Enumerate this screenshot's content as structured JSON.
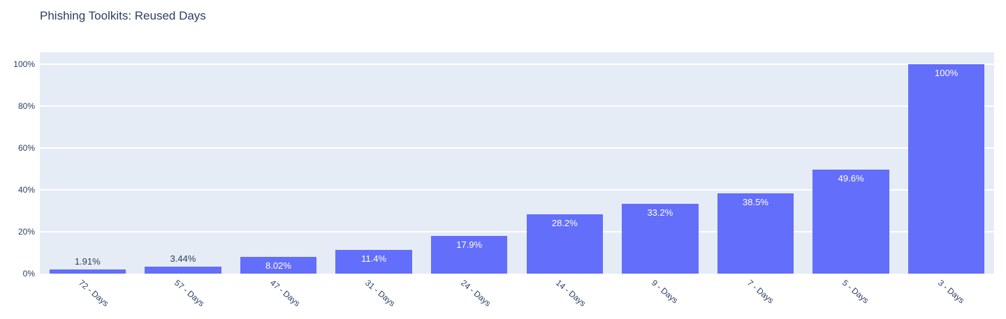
{
  "chart_data": {
    "type": "bar",
    "title": "Phishing Toolkits: Reused Days",
    "categories": [
      "72 - Days",
      "57 - Days",
      "47 - Days",
      "31 - Days",
      "24 - Days",
      "14 - Days",
      "9 - Days",
      "7 - Days",
      "5 - Days",
      "3 - Days"
    ],
    "values": [
      1.91,
      3.44,
      8.02,
      11.4,
      17.9,
      28.2,
      33.2,
      38.5,
      49.6,
      100
    ],
    "text_labels": [
      "1.91%",
      "3.44%",
      "8.02%",
      "11.4%",
      "17.9%",
      "28.2%",
      "33.2%",
      "38.5%",
      "49.6%",
      "100%"
    ],
    "xlabel": "",
    "ylabel": "",
    "ytick_values": [
      0,
      20,
      40,
      60,
      80,
      100
    ],
    "ytick_labels": [
      "0%",
      "20%",
      "40%",
      "60%",
      "80%",
      "100%"
    ],
    "ylim": [
      0,
      105.67
    ],
    "grid": true,
    "legend": "none",
    "colors": {
      "bar_fill": "#636efa",
      "plot_background": "#e5ecf6",
      "paper_background": "#ffffff",
      "gridline": "#ffffff",
      "text": "#2a3f5f",
      "inside_label_text": "#ffffff"
    }
  }
}
